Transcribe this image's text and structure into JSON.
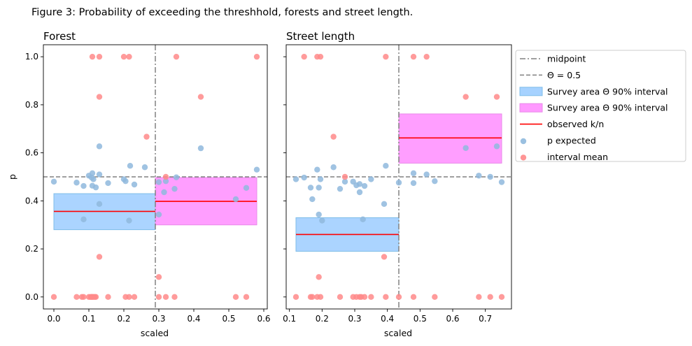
{
  "figure_title": "Figure 3: Probability of exceeding the threshhold, forests and street length.",
  "legend": {
    "entries": [
      {
        "label": "midpoint",
        "kind": "dashdot",
        "color": "#808080"
      },
      {
        "label": "Θ = 0.5",
        "kind": "dash",
        "color": "#808080"
      },
      {
        "label": "Survey area Θ 90% interval",
        "kind": "patch",
        "color": "#a6d2ff",
        "edge": "#7fbde8"
      },
      {
        "label": "Survey area Θ 90% interval",
        "kind": "patch",
        "color": "#ff99ff",
        "edge": "#e88ae8"
      },
      {
        "label": "observed k/n",
        "kind": "line",
        "color": "#ff0000"
      },
      {
        "label": "p expected",
        "kind": "dot",
        "color": "#8fb9dd"
      },
      {
        "label": "interval mean",
        "kind": "dot",
        "color": "#ff8a8a"
      }
    ]
  },
  "colors": {
    "expected_dot": "#8fb9dd",
    "interval_dot": "#ff8a8a",
    "band_low": "#a6d2ff",
    "band_high": "#ff99ff",
    "observed_line": "#ff0000",
    "reference_line": "#808080"
  },
  "chart_data": [
    {
      "type": "scatter",
      "title": "Forest",
      "xlabel": "scaled",
      "ylabel": "p",
      "xlim": [
        -0.03,
        0.61
      ],
      "ylim": [
        -0.05,
        1.05
      ],
      "xticks": [
        0.0,
        0.1,
        0.2,
        0.3,
        0.4,
        0.5,
        0.6
      ],
      "xtick_labels": [
        "0.0",
        "0.1",
        "0.2",
        "0.3",
        "0.4",
        "0.5",
        "0.6"
      ],
      "yticks": [
        0.0,
        0.2,
        0.4,
        0.6,
        0.8,
        1.0
      ],
      "ytick_labels": [
        "0.0",
        "0.2",
        "0.4",
        "0.6",
        "0.8",
        "1.0"
      ],
      "show_ytick_labels": true,
      "midpoint": 0.29,
      "threshold": 0.5,
      "intervals": [
        {
          "x0": 0.0,
          "x1": 0.29,
          "low": 0.28,
          "high": 0.43,
          "observed": 0.356,
          "color": "#a6d2ff"
        },
        {
          "x0": 0.29,
          "x1": 0.58,
          "low": 0.3,
          "high": 0.497,
          "observed": 0.398,
          "color": "#ff99ff"
        }
      ],
      "series": [
        {
          "name": "p expected",
          "points": [
            [
              0.0,
              0.48
            ],
            [
              0.065,
              0.476
            ],
            [
              0.085,
              0.462
            ],
            [
              0.085,
              0.323
            ],
            [
              0.1,
              0.505
            ],
            [
              0.108,
              0.497
            ],
            [
              0.11,
              0.515
            ],
            [
              0.11,
              0.463
            ],
            [
              0.113,
              0.49
            ],
            [
              0.12,
              0.456
            ],
            [
              0.13,
              0.627
            ],
            [
              0.13,
              0.51
            ],
            [
              0.13,
              0.387
            ],
            [
              0.155,
              0.474
            ],
            [
              0.2,
              0.49
            ],
            [
              0.205,
              0.482
            ],
            [
              0.215,
              0.318
            ],
            [
              0.218,
              0.546
            ],
            [
              0.23,
              0.468
            ],
            [
              0.26,
              0.54
            ],
            [
              0.3,
              0.478
            ],
            [
              0.3,
              0.343
            ],
            [
              0.315,
              0.436
            ],
            [
              0.32,
              0.482
            ],
            [
              0.345,
              0.45
            ],
            [
              0.35,
              0.498
            ],
            [
              0.42,
              0.619
            ],
            [
              0.52,
              0.407
            ],
            [
              0.55,
              0.454
            ],
            [
              0.58,
              0.53
            ]
          ]
        },
        {
          "name": "interval mean",
          "points": [
            [
              0.0,
              0.0
            ],
            [
              0.065,
              0.0
            ],
            [
              0.08,
              0.0
            ],
            [
              0.085,
              0.0
            ],
            [
              0.1,
              0.0
            ],
            [
              0.105,
              0.0
            ],
            [
              0.108,
              0.0
            ],
            [
              0.11,
              0.0
            ],
            [
              0.113,
              0.0
            ],
            [
              0.117,
              0.0
            ],
            [
              0.12,
              0.0
            ],
            [
              0.13,
              0.167
            ],
            [
              0.155,
              0.0
            ],
            [
              0.205,
              0.0
            ],
            [
              0.215,
              0.0
            ],
            [
              0.23,
              0.0
            ],
            [
              0.3,
              0.0
            ],
            [
              0.32,
              0.0
            ],
            [
              0.345,
              0.0
            ],
            [
              0.52,
              0.0
            ],
            [
              0.55,
              0.0
            ],
            [
              0.3,
              0.083
            ],
            [
              0.32,
              0.5
            ],
            [
              0.265,
              0.667
            ],
            [
              0.13,
              0.833
            ],
            [
              0.42,
              0.833
            ],
            [
              0.11,
              1.0
            ],
            [
              0.13,
              1.0
            ],
            [
              0.2,
              1.0
            ],
            [
              0.215,
              1.0
            ],
            [
              0.35,
              1.0
            ],
            [
              0.58,
              1.0
            ]
          ]
        }
      ]
    },
    {
      "type": "scatter",
      "title": "Street length",
      "xlabel": "scaled",
      "ylabel": "",
      "xlim": [
        0.09,
        0.78
      ],
      "ylim": [
        -0.05,
        1.05
      ],
      "xticks": [
        0.1,
        0.2,
        0.3,
        0.4,
        0.5,
        0.6,
        0.7
      ],
      "xtick_labels": [
        "0.1",
        "0.2",
        "0.3",
        "0.4",
        "0.5",
        "0.6",
        "0.7"
      ],
      "yticks": [
        0.0,
        0.2,
        0.4,
        0.6,
        0.8,
        1.0
      ],
      "ytick_labels": [
        "",
        "",
        "",
        "",
        "",
        ""
      ],
      "show_ytick_labels": false,
      "midpoint": 0.435,
      "threshold": 0.5,
      "intervals": [
        {
          "x0": 0.12,
          "x1": 0.435,
          "low": 0.19,
          "high": 0.33,
          "observed": 0.26,
          "color": "#a6d2ff"
        },
        {
          "x0": 0.435,
          "x1": 0.75,
          "low": 0.557,
          "high": 0.762,
          "observed": 0.662,
          "color": "#ff99ff"
        }
      ],
      "series": [
        {
          "name": "p expected",
          "points": [
            [
              0.12,
              0.49
            ],
            [
              0.145,
              0.497
            ],
            [
              0.165,
              0.455
            ],
            [
              0.17,
              0.407
            ],
            [
              0.185,
              0.53
            ],
            [
              0.19,
              0.455
            ],
            [
              0.19,
              0.343
            ],
            [
              0.195,
              0.49
            ],
            [
              0.2,
              0.318
            ],
            [
              0.235,
              0.54
            ],
            [
              0.255,
              0.45
            ],
            [
              0.27,
              0.48
            ],
            [
              0.295,
              0.48
            ],
            [
              0.305,
              0.465
            ],
            [
              0.315,
              0.436
            ],
            [
              0.315,
              0.47
            ],
            [
              0.325,
              0.323
            ],
            [
              0.33,
              0.462
            ],
            [
              0.35,
              0.49
            ],
            [
              0.39,
              0.387
            ],
            [
              0.395,
              0.546
            ],
            [
              0.435,
              0.476
            ],
            [
              0.48,
              0.515
            ],
            [
              0.48,
              0.474
            ],
            [
              0.52,
              0.51
            ],
            [
              0.545,
              0.482
            ],
            [
              0.64,
              0.62
            ],
            [
              0.68,
              0.505
            ],
            [
              0.715,
              0.5
            ],
            [
              0.735,
              0.627
            ],
            [
              0.75,
              0.478
            ]
          ]
        },
        {
          "name": "interval mean",
          "points": [
            [
              0.12,
              0.0
            ],
            [
              0.165,
              0.0
            ],
            [
              0.17,
              0.0
            ],
            [
              0.185,
              0.0
            ],
            [
              0.195,
              0.0
            ],
            [
              0.255,
              0.0
            ],
            [
              0.295,
              0.0
            ],
            [
              0.305,
              0.0
            ],
            [
              0.315,
              0.0
            ],
            [
              0.32,
              0.0
            ],
            [
              0.33,
              0.0
            ],
            [
              0.35,
              0.0
            ],
            [
              0.395,
              0.0
            ],
            [
              0.435,
              0.0
            ],
            [
              0.48,
              0.0
            ],
            [
              0.545,
              0.0
            ],
            [
              0.68,
              0.0
            ],
            [
              0.715,
              0.0
            ],
            [
              0.75,
              0.0
            ],
            [
              0.19,
              0.083
            ],
            [
              0.39,
              0.167
            ],
            [
              0.27,
              0.5
            ],
            [
              0.235,
              0.667
            ],
            [
              0.64,
              0.833
            ],
            [
              0.735,
              0.833
            ],
            [
              0.145,
              1.0
            ],
            [
              0.185,
              1.0
            ],
            [
              0.195,
              1.0
            ],
            [
              0.395,
              1.0
            ],
            [
              0.48,
              1.0
            ],
            [
              0.52,
              1.0
            ]
          ]
        }
      ]
    }
  ]
}
